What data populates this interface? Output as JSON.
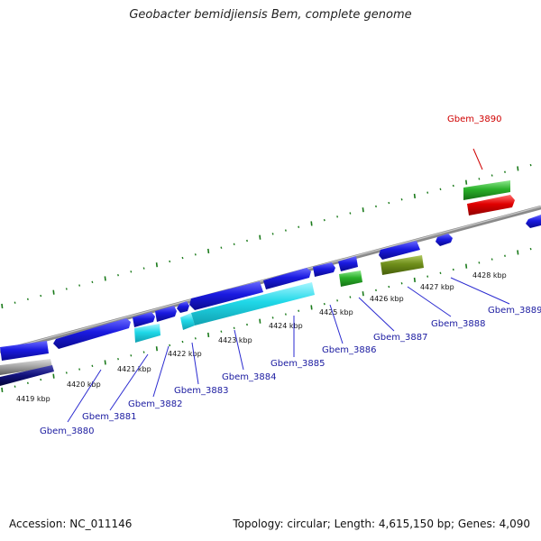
{
  "title": "Geobacter bemidjiensis Bem, complete genome",
  "footer": {
    "accession": "Accession: NC_011146",
    "stats": "Topology: circular; Length: 4,615,150 bp; Genes: 4,090"
  },
  "colors": {
    "backbone": "#808080",
    "ticks": "#1a7a1a",
    "label_line": "#2a2ad0",
    "label_text": "#1a1aa0",
    "highlight": "#d00000",
    "gene_blue": "#1a1ae0",
    "gene_cyan": "#20d8e8",
    "gene_green": "#2ab02a",
    "gene_olive": "#6e8e1a",
    "gene_navy": "#10107a",
    "gene_grey": "#9a9a9a"
  },
  "scale": {
    "unit": "kbp",
    "labels": [
      "4419 kbp",
      "4420 kbp",
      "4421 kbp",
      "4422 kbp",
      "4423 kbp",
      "4424 kbp",
      "4425 kbp",
      "4426 kbp",
      "4427 kbp",
      "4428 kbp"
    ]
  },
  "genes": [
    {
      "name": "Gbem_3880",
      "color": "label_text"
    },
    {
      "name": "Gbem_3881",
      "color": "label_text"
    },
    {
      "name": "Gbem_3882",
      "color": "label_text"
    },
    {
      "name": "Gbem_3883",
      "color": "label_text"
    },
    {
      "name": "Gbem_3884",
      "color": "label_text"
    },
    {
      "name": "Gbem_3885",
      "color": "label_text"
    },
    {
      "name": "Gbem_3886",
      "color": "label_text"
    },
    {
      "name": "Gbem_3887",
      "color": "label_text"
    },
    {
      "name": "Gbem_3888",
      "color": "label_text"
    },
    {
      "name": "Gbem_3889",
      "color": "label_text"
    },
    {
      "name": "Gbem_3890",
      "color": "highlight"
    }
  ]
}
